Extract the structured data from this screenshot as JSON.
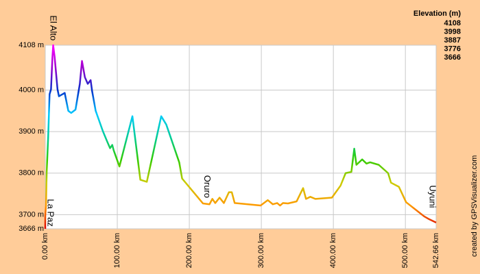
{
  "chart_data": {
    "type": "line",
    "x": [
      0,
      0,
      1,
      2,
      4,
      6,
      8,
      10,
      11,
      13,
      17,
      19,
      27,
      32,
      36,
      42,
      48,
      51,
      55,
      59,
      63,
      65,
      70,
      80,
      86,
      90,
      93,
      95,
      103,
      121,
      132,
      141,
      161,
      168,
      186,
      190,
      219,
      228,
      232,
      236,
      242,
      248,
      255,
      259,
      263,
      299,
      309,
      316,
      322,
      326,
      330,
      337,
      349,
      358,
      362,
      368,
      375,
      398,
      410,
      417,
      425,
      429,
      432,
      440,
      446,
      451,
      463,
      476,
      480,
      491,
      501,
      512,
      526,
      533,
      542.66
    ],
    "values": [
      3666,
      3697,
      3722,
      3803,
      3885,
      3990,
      4002,
      4080,
      4108,
      4080,
      4002,
      3985,
      3993,
      3950,
      3945,
      3953,
      4015,
      4070,
      4031,
      4015,
      4024,
      3998,
      3950,
      3901,
      3876,
      3860,
      3868,
      3855,
      3816,
      3937,
      3784,
      3779,
      3937,
      3917,
      3826,
      3787,
      3727,
      3725,
      3738,
      3728,
      3741,
      3728,
      3754,
      3754,
      3728,
      3722,
      3735,
      3725,
      3728,
      3722,
      3728,
      3727,
      3732,
      3764,
      3738,
      3743,
      3738,
      3741,
      3770,
      3800,
      3803,
      3859,
      3820,
      3833,
      3823,
      3826,
      3820,
      3800,
      3777,
      3767,
      3730,
      3715,
      3696,
      3689,
      3681
    ],
    "xlim": [
      0,
      542.66
    ],
    "ylim": [
      3666,
      4108
    ],
    "xticks": [
      {
        "value": 0,
        "label": "0.00 km"
      },
      {
        "value": 100,
        "label": "100.00 km"
      },
      {
        "value": 200,
        "label": "200.00 km"
      },
      {
        "value": 300,
        "label": "300.00 km"
      },
      {
        "value": 400,
        "label": "400.00 km"
      },
      {
        "value": 500,
        "label": "500.00 km"
      },
      {
        "value": 542.66,
        "label": "542.66 km"
      }
    ],
    "yticks": [
      {
        "value": 3666,
        "label": "3666 m"
      },
      {
        "value": 3700,
        "label": "3700 m"
      },
      {
        "value": 3800,
        "label": "3800 m"
      },
      {
        "value": 3900,
        "label": "3900 m"
      },
      {
        "value": 4000,
        "label": "4000 m"
      },
      {
        "value": 4108,
        "label": "4108 m"
      }
    ],
    "grid": true,
    "legend": {
      "title": "Elevation (m)",
      "entries": [
        {
          "value": 4108,
          "color": "#cc00cc"
        },
        {
          "value": 3998,
          "color": "#8833aa"
        },
        {
          "value": 3887,
          "color": "#66bb33"
        },
        {
          "value": 3776,
          "color": "#ccaa33"
        },
        {
          "value": 3666,
          "color": "#cc0000"
        }
      ]
    },
    "annotations": [
      {
        "text": "El Alto",
        "x": 10.5,
        "y": 4180
      },
      {
        "text": "La Paz",
        "x": 6.7,
        "y": 3738
      },
      {
        "text": "Oruro",
        "x": 224,
        "y": 3795
      },
      {
        "text": "Uyuni",
        "x": 537,
        "y": 3771
      }
    ],
    "credit": "created by GPSVisualizer.com"
  }
}
